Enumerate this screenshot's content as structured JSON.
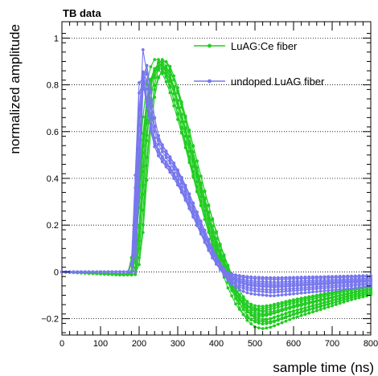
{
  "chart_data": {
    "type": "line",
    "title": "TB data",
    "xlabel": "sample time (ns)",
    "ylabel": "normalized amplitude",
    "xlim": [
      0,
      800
    ],
    "ylim": [
      -0.27,
      1.07
    ],
    "xticks": [
      0,
      100,
      200,
      300,
      400,
      500,
      600,
      700,
      800
    ],
    "yticks": [
      -0.2,
      0,
      0.2,
      0.4,
      0.6,
      0.8,
      1
    ],
    "ytick_labels": [
      "−0.2",
      "0",
      "0.2",
      "0.4",
      "0.6",
      "0.8",
      "1"
    ],
    "grid": {
      "y": true,
      "style": "dotted"
    },
    "legend_position": "top-right",
    "colors": {
      "luag_ce": "#22cc22",
      "undoped": "#7777ee"
    },
    "series": [
      {
        "name": "LuAG:Ce fiber",
        "color": "#22cc22",
        "template": {
          "x": [
            0,
            150,
            185,
            200,
            210,
            220,
            230,
            240,
            250,
            260,
            270,
            280,
            290,
            300,
            320,
            340,
            360,
            380,
            400,
            420,
            440,
            460,
            480,
            500,
            520,
            540,
            560,
            580,
            600,
            650,
            700,
            750,
            800
          ],
          "y": [
            0,
            -0.01,
            -0.01,
            0.2,
            0.45,
            0.65,
            0.79,
            0.86,
            0.89,
            0.89,
            0.87,
            0.83,
            0.78,
            0.72,
            0.6,
            0.47,
            0.34,
            0.22,
            0.11,
            0.02,
            -0.06,
            -0.12,
            -0.16,
            -0.18,
            -0.185,
            -0.18,
            -0.17,
            -0.16,
            -0.15,
            -0.13,
            -0.11,
            -0.09,
            -0.075
          ]
        },
        "variants": [
          {
            "shift": 0,
            "scale": 1.0,
            "tail": 1.0
          },
          {
            "shift": 5,
            "scale": 1.02,
            "tail": 1.08
          },
          {
            "shift": -5,
            "scale": 0.98,
            "tail": 0.92
          },
          {
            "shift": 10,
            "scale": 1.01,
            "tail": 1.15
          },
          {
            "shift": -8,
            "scale": 0.97,
            "tail": 0.88
          },
          {
            "shift": 3,
            "scale": 0.99,
            "tail": 1.22
          },
          {
            "shift": -3,
            "scale": 1.0,
            "tail": 0.8
          },
          {
            "shift": 7,
            "scale": 0.96,
            "tail": 1.02
          },
          {
            "shift": -10,
            "scale": 1.02,
            "tail": 1.12
          },
          {
            "shift": 12,
            "scale": 0.98,
            "tail": 0.95
          },
          {
            "shift": 1,
            "scale": 1.01,
            "tail": 1.3
          },
          {
            "shift": -6,
            "scale": 0.99,
            "tail": 1.04
          }
        ]
      },
      {
        "name": "undoped LuAG fiber",
        "color": "#7777ee",
        "template": {
          "x": [
            0,
            150,
            185,
            195,
            205,
            210,
            220,
            230,
            240,
            250,
            260,
            280,
            300,
            320,
            340,
            360,
            380,
            400,
            420,
            440,
            460,
            480,
            500,
            550,
            600,
            650,
            700,
            750,
            800
          ],
          "y": [
            0,
            0,
            0.0,
            0.4,
            0.85,
            0.95,
            0.85,
            0.72,
            0.62,
            0.57,
            0.54,
            0.49,
            0.43,
            0.36,
            0.28,
            0.2,
            0.12,
            0.05,
            0.0,
            -0.03,
            -0.045,
            -0.055,
            -0.06,
            -0.065,
            -0.06,
            -0.055,
            -0.05,
            -0.045,
            -0.04
          ]
        },
        "variants": [
          {
            "shift": 0,
            "scale": 1.0,
            "tail": 1.0
          },
          {
            "shift": 3,
            "scale": 0.96,
            "tail": 0.7
          },
          {
            "shift": -3,
            "scale": 0.92,
            "tail": 1.3
          },
          {
            "shift": 5,
            "scale": 0.98,
            "tail": 0.5
          },
          {
            "shift": -5,
            "scale": 0.9,
            "tail": 1.5
          },
          {
            "shift": 2,
            "scale": 0.94,
            "tail": 0.85
          },
          {
            "shift": -2,
            "scale": 0.88,
            "tail": 1.15
          },
          {
            "shift": 6,
            "scale": 0.97,
            "tail": 0.4
          },
          {
            "shift": -6,
            "scale": 0.93,
            "tail": 1.7
          },
          {
            "shift": 1,
            "scale": 0.91,
            "tail": 1.0
          }
        ]
      }
    ]
  }
}
